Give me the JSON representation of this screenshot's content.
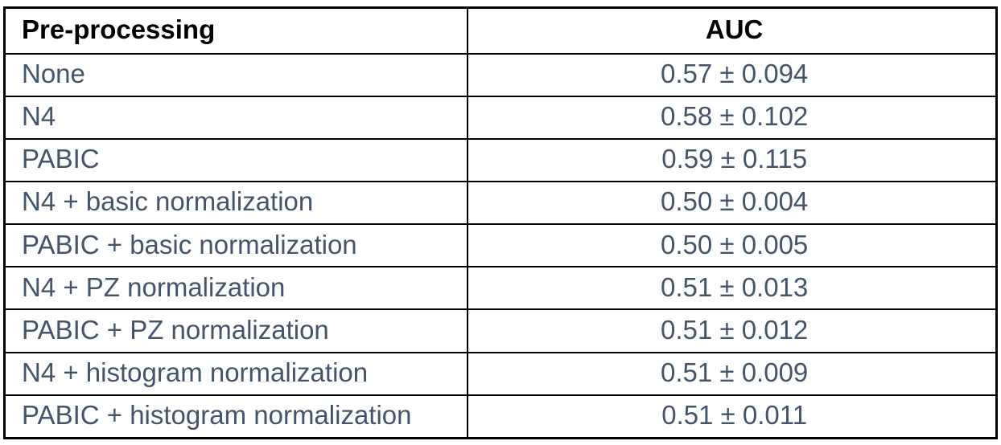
{
  "colors": {
    "body_text": "#44546A",
    "header_text": "#000000",
    "border": "#000000",
    "background": "#FFFFFF"
  },
  "table": {
    "columns": [
      {
        "label": "Pre-processing",
        "align": "left"
      },
      {
        "label": "AUC",
        "align": "center"
      }
    ],
    "rows": [
      {
        "pre": "None",
        "auc": "0.57 ± 0.094"
      },
      {
        "pre": "N4",
        "auc": "0.58 ± 0.102"
      },
      {
        "pre": "PABIC",
        "auc": "0.59 ± 0.115"
      },
      {
        "pre": "N4 + basic normalization",
        "auc": "0.50 ± 0.004"
      },
      {
        "pre": "PABIC + basic normalization",
        "auc": "0.50 ± 0.005"
      },
      {
        "pre": "N4 + PZ normalization",
        "auc": "0.51 ± 0.013"
      },
      {
        "pre": "PABIC + PZ normalization",
        "auc": "0.51 ± 0.012"
      },
      {
        "pre": "N4 + histogram normalization",
        "auc": "0.51 ± 0.009"
      },
      {
        "pre": "PABIC + histogram normalization",
        "auc": "0.51 ± 0.011"
      }
    ]
  },
  "chart_data": {
    "type": "table",
    "columns": [
      "Pre-processing",
      "AUC"
    ],
    "rows": [
      [
        "None",
        "0.57 ± 0.094"
      ],
      [
        "N4",
        "0.58 ± 0.102"
      ],
      [
        "PABIC",
        "0.59 ± 0.115"
      ],
      [
        "N4 + basic normalization",
        "0.50 ± 0.004"
      ],
      [
        "PABIC + basic normalization",
        "0.50 ± 0.005"
      ],
      [
        "N4 + PZ normalization",
        "0.51 ± 0.013"
      ],
      [
        "PABIC + PZ normalization",
        "0.51 ± 0.012"
      ],
      [
        "N4 + histogram normalization",
        "0.51 ± 0.009"
      ],
      [
        "PABIC + histogram normalization",
        "0.51 ± 0.011"
      ]
    ],
    "series": [
      {
        "name": "None",
        "auc_mean": 0.57,
        "auc_std": 0.094
      },
      {
        "name": "N4",
        "auc_mean": 0.58,
        "auc_std": 0.102
      },
      {
        "name": "PABIC",
        "auc_mean": 0.59,
        "auc_std": 0.115
      },
      {
        "name": "N4 + basic normalization",
        "auc_mean": 0.5,
        "auc_std": 0.004
      },
      {
        "name": "PABIC + basic normalization",
        "auc_mean": 0.5,
        "auc_std": 0.005
      },
      {
        "name": "N4 + PZ normalization",
        "auc_mean": 0.51,
        "auc_std": 0.013
      },
      {
        "name": "PABIC + PZ normalization",
        "auc_mean": 0.51,
        "auc_std": 0.012
      },
      {
        "name": "N4 + histogram normalization",
        "auc_mean": 0.51,
        "auc_std": 0.009
      },
      {
        "name": "PABIC + histogram normalization",
        "auc_mean": 0.51,
        "auc_std": 0.011
      }
    ]
  }
}
